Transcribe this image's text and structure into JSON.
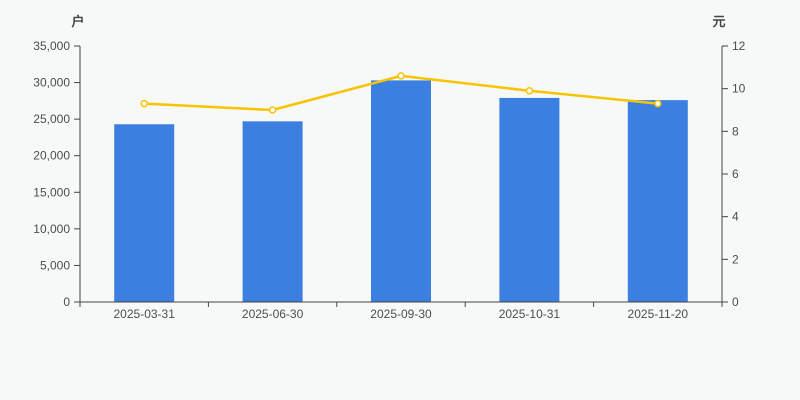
{
  "chart_data": {
    "type": "bar+line",
    "title": "",
    "legend": "none",
    "grid": false,
    "categories": [
      "2025-03-31",
      "2025-06-30",
      "2025-09-30",
      "2025-10-31",
      "2025-11-20"
    ],
    "bar_series": {
      "axis": "left",
      "values": [
        24300,
        24700,
        30300,
        27900,
        27600
      ]
    },
    "line_series": {
      "axis": "right",
      "values": [
        9.3,
        9.0,
        10.6,
        9.9,
        9.3
      ],
      "marker": "hollow-circle"
    },
    "left_axis": {
      "unit": "户",
      "min": 0,
      "max": 35000,
      "tick_step": 5000,
      "tick_labels": [
        "0",
        "5,000",
        "10,000",
        "15,000",
        "20,000",
        "25,000",
        "30,000",
        "35,000"
      ]
    },
    "right_axis": {
      "unit": "元",
      "min": 0,
      "max": 12,
      "tick_step": 2,
      "tick_labels": [
        "0",
        "2",
        "4",
        "6",
        "8",
        "10",
        "12"
      ]
    },
    "colors": {
      "background": "#f7f8f8",
      "bar": "#3b80e0",
      "line": "#f8c301",
      "marker_fill": "#ffffff",
      "axis": "#444444",
      "tick_text": "#4d4d4d"
    }
  }
}
